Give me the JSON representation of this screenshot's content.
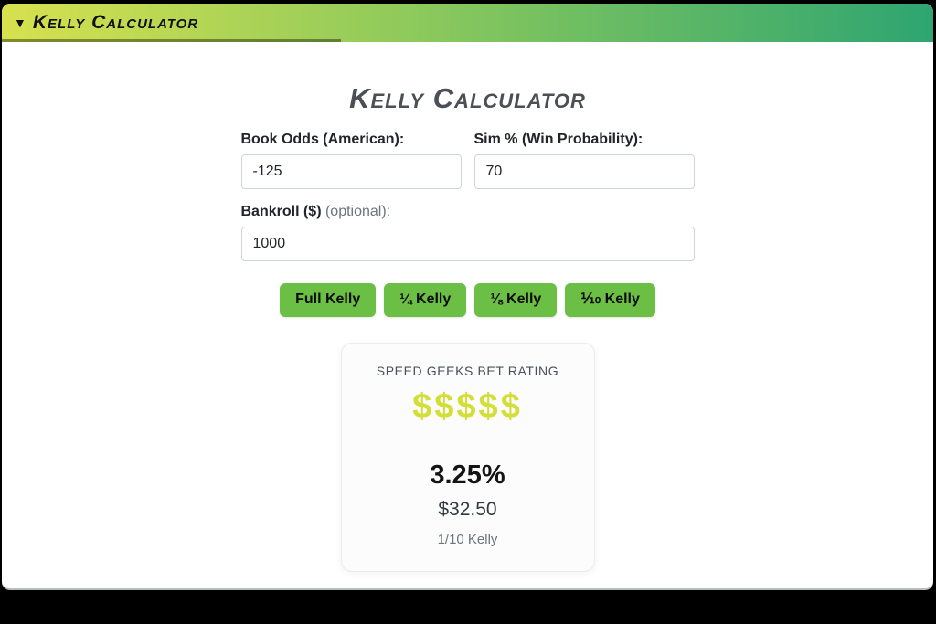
{
  "header": {
    "brand_icon": "▼",
    "brand": "Kelly Calculator"
  },
  "main": {
    "title": "Kelly Calculator",
    "form": {
      "fields": [
        {
          "label": "Book Odds (American):",
          "optional": "",
          "value": "-125"
        },
        {
          "label": "Sim % (Win Probability):",
          "optional": "",
          "value": "70"
        },
        {
          "label": "Bankroll ($)",
          "optional": "(optional):",
          "value": "1000"
        }
      ]
    },
    "buttons": [
      {
        "label": "Full Kelly"
      },
      {
        "label": "¼ Kelly"
      },
      {
        "label": "⅛ Kelly"
      },
      {
        "label": "⅒ Kelly"
      }
    ],
    "result_card": {
      "heading": "SPEED GEEKS BET RATING",
      "rating": "$$$$$",
      "percent": "3.25%",
      "amount": "$32.50",
      "fraction": "1/10 Kelly"
    }
  },
  "colors": {
    "header_gradient_start": "#d7e14e",
    "header_gradient_end": "#2ea571",
    "button_green": "#6cbf45",
    "rating_yellow": "#d3de39",
    "title_gray": "#4a5056",
    "frame_black": "#000000"
  }
}
